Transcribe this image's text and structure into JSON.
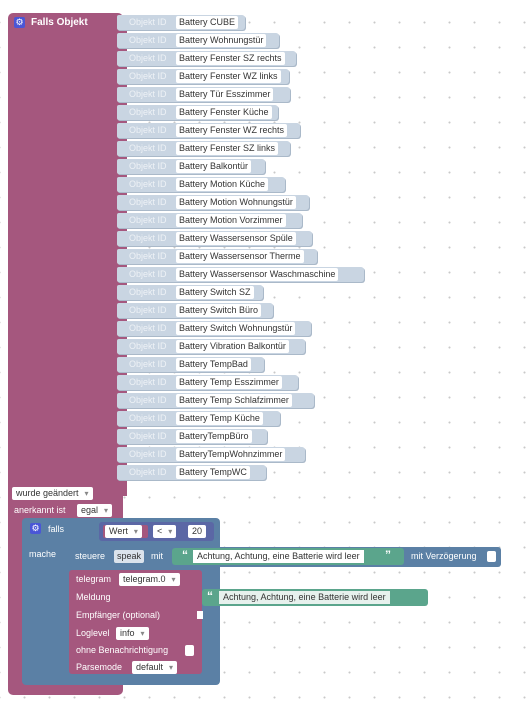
{
  "trigger": {
    "title": "Falls Objekt",
    "object_prefix": "Objekt ID",
    "objects": [
      "Battery CUBE",
      "Battery Wohnungstür",
      "Battery Fenster SZ rechts",
      "Battery Fenster WZ links",
      "Battery Tür Esszimmer",
      "Battery Fenster Küche",
      "Battery Fenster WZ rechts",
      "Battery Fenster SZ links",
      "Battery Balkontür",
      "Battery Motion Küche",
      "Battery Motion Wohnungstür",
      "Battery Motion Vorzimmer",
      "Battery Wassersensor Spüle",
      "Battery  Wassersensor Therme",
      "Battery  Wassersensor Waschmaschine",
      "Battery Switch SZ",
      "Battery Switch Büro",
      "Battery Switch Wohnungstür",
      "Battery Vibration Balkontür",
      "Battery TempBad",
      "Battery Temp Esszimmer",
      "Battery Temp Schlafzimmer",
      "Battery Temp Küche",
      "BatteryTempBüro",
      "BatteryTempWohnzimmer",
      "Battery TempWC"
    ],
    "change_mode": "wurde geändert",
    "ack_label": "anerkannt ist",
    "ack_value": "egal"
  },
  "logic": {
    "if_label": "falls",
    "do_label": "mache",
    "compare_left": "Wert",
    "compare_op": "<",
    "compare_right": "20"
  },
  "speak": {
    "label": "steuere",
    "target": "speak",
    "with": "mit",
    "text": "Achtung, Achtung, eine Batterie wird leer",
    "delay_label": "mit Verzögerung"
  },
  "telegram": {
    "label": "telegram",
    "instance": "telegram.0",
    "message_label": "Meldung",
    "message_text": "Achtung, Achtung, eine Batterie wird leer",
    "recipient_label": "Empfänger (optional)",
    "loglevel_label": "Loglevel",
    "loglevel_value": "info",
    "silent_label": "ohne Benachrichtigung",
    "parsemode_label": "Parsemode",
    "parsemode_value": "default"
  },
  "colors": {
    "trigger": "#a5577e",
    "logic": "#5b80a5",
    "object": "#c9d5e2",
    "string": "#5ba58c",
    "gear": "#4a56d6"
  },
  "icons": [
    "gear-icon",
    "quote-icon"
  ]
}
